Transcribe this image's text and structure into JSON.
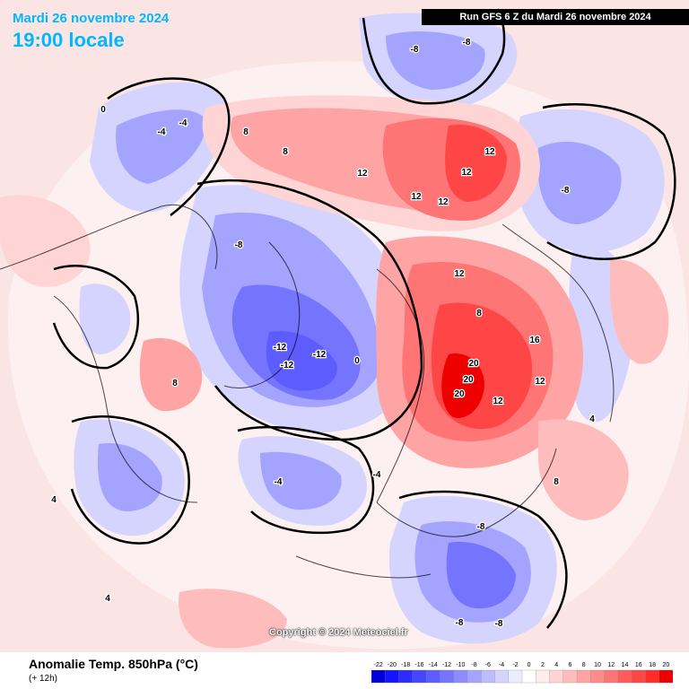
{
  "header": {
    "date_line": "Mardi 26 novembre 2024",
    "time_line": "19:00 locale",
    "run_info": "Run GFS 6 Z du Mardi 26 novembre 2024"
  },
  "footer": {
    "parameter": "Anomalie Temp. 850hPa (°C)",
    "lead_time": "(+ 12h)",
    "copyright": "Copyright © 2024 Meteociel.fr"
  },
  "legend": {
    "values": [
      "-22",
      "-20",
      "-18",
      "-16",
      "-14",
      "-12",
      "-10",
      "-8",
      "-6",
      "-4",
      "-2",
      "0",
      "2",
      "4",
      "6",
      "8",
      "10",
      "12",
      "14",
      "16",
      "18",
      "20"
    ],
    "colors": [
      "#0000d8",
      "#1414ff",
      "#2c2cff",
      "#4646ff",
      "#5c5cff",
      "#7474ff",
      "#8c8cff",
      "#a4a4ff",
      "#bcbcff",
      "#d4d4ff",
      "#ececff",
      "#ffffff",
      "#ffecec",
      "#ffd4d4",
      "#ffbcbc",
      "#ffa4a4",
      "#ff8c8c",
      "#ff7474",
      "#ff5c5c",
      "#ff4646",
      "#ff2c2c",
      "#ee0000"
    ]
  },
  "map": {
    "colors": {
      "ocean_bg": "#fbe4e4",
      "light_blue": "#d4d4ff",
      "mid_blue": "#a4a4ff",
      "deep_blue": "#7474ff",
      "darker_blue": "#5c5cff",
      "light_red": "#ffd4d4",
      "mid_red": "#ffa4a4",
      "strong_red": "#ff7474",
      "deep_red": "#ff4646",
      "darkest_red": "#ee0000"
    },
    "labels": [
      {
        "text": "-8"
      },
      {
        "text": "-8"
      },
      {
        "text": "-4"
      },
      {
        "text": "-4"
      },
      {
        "text": "8"
      },
      {
        "text": "8"
      },
      {
        "text": "12"
      },
      {
        "text": "12"
      },
      {
        "text": "12"
      },
      {
        "text": "12"
      },
      {
        "text": "12"
      },
      {
        "text": "-8"
      },
      {
        "text": "-8"
      },
      {
        "text": "-12"
      },
      {
        "text": "-12"
      },
      {
        "text": "-12"
      },
      {
        "text": "12"
      },
      {
        "text": "8"
      },
      {
        "text": "16"
      },
      {
        "text": "20"
      },
      {
        "text": "20"
      },
      {
        "text": "20"
      },
      {
        "text": "12"
      },
      {
        "text": "12"
      },
      {
        "text": "-4"
      },
      {
        "text": "-8"
      },
      {
        "text": "-8"
      },
      {
        "text": "8"
      },
      {
        "text": "4"
      },
      {
        "text": "4"
      },
      {
        "text": "0"
      },
      {
        "text": "0"
      },
      {
        "text": "-4"
      },
      {
        "text": "4"
      },
      {
        "text": "8"
      },
      {
        "text": "-8"
      }
    ]
  }
}
